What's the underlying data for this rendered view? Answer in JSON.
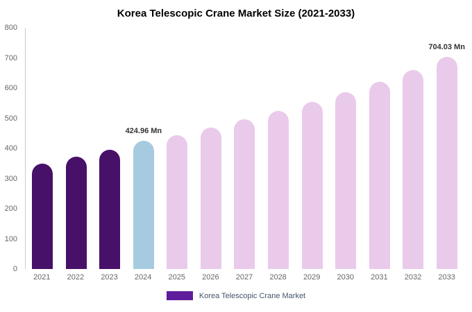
{
  "title": "Korea Telescopic Crane Market Size (2021-2033)",
  "chart_data": {
    "type": "bar",
    "title": "Korea Telescopic Crane Market Size (2021-2033)",
    "categories": [
      "2021",
      "2022",
      "2023",
      "2024",
      "2025",
      "2026",
      "2027",
      "2028",
      "2029",
      "2030",
      "2031",
      "2032",
      "2033"
    ],
    "values": [
      350,
      372,
      395,
      424.96,
      443,
      468,
      497,
      524,
      553,
      586,
      621,
      660,
      704.03
    ],
    "xlabel": "",
    "ylabel": "",
    "ylim": [
      0,
      800
    ],
    "yticks": [
      0,
      100,
      200,
      300,
      400,
      500,
      600,
      700,
      800
    ],
    "grid": false,
    "legend_position": "bottom",
    "bar_colors": [
      "#471069",
      "#471069",
      "#471069",
      "#a6cbe1",
      "#eacaea",
      "#eacaea",
      "#eacaea",
      "#eacaea",
      "#eacaea",
      "#eacaea",
      "#eacaea",
      "#eacaea",
      "#eacaea"
    ],
    "annotations": [
      {
        "category": "2024",
        "text": "424.96 Mn"
      },
      {
        "category": "2033",
        "text": "704.03 Mn"
      }
    ]
  },
  "legend": {
    "label": "Korea Telescopic Crane Market",
    "swatch_color": "#5f1c9c"
  },
  "colors": {
    "historical_bar": "#471069",
    "current_year_bar": "#a6cbe1",
    "forecast_bar": "#eacaea",
    "axis_line": "#cccccc",
    "tick_text": "#666666",
    "annotation_text": "#333333",
    "legend_text": "#44546a"
  }
}
